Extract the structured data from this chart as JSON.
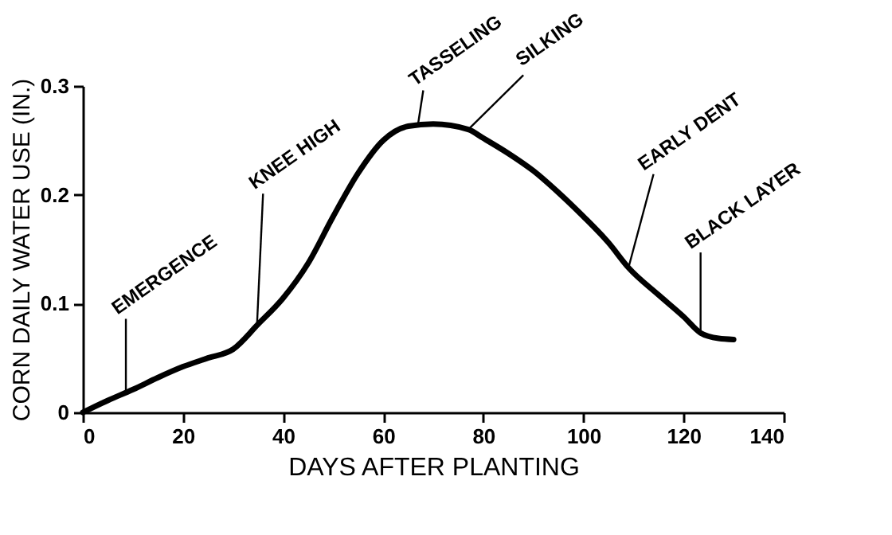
{
  "chart_data": {
    "type": "line",
    "xlabel": "DAYS AFTER PLANTING",
    "ylabel": "CORN DAILY WATER USE (IN.)",
    "x": [
      0,
      5,
      10,
      15,
      20,
      25,
      30,
      35,
      40,
      45,
      50,
      55,
      60,
      65,
      70,
      77,
      80,
      85,
      90,
      95,
      100,
      105,
      109,
      115,
      120,
      123.4,
      127,
      130
    ],
    "series": [
      {
        "color": "#000000",
        "values": [
          0,
          0.011,
          0.021,
          0.032,
          0.042,
          0.05,
          0.058,
          0.081,
          0.105,
          0.137,
          0.18,
          0.22,
          0.25,
          0.263,
          0.265,
          0.26,
          0.252,
          0.238,
          0.222,
          0.202,
          0.18,
          0.156,
          0.133,
          0.108,
          0.088,
          0.073,
          0.068,
          0.067
        ]
      }
    ],
    "annotations": [
      {
        "text": "EMERGENCE",
        "x": 8.6,
        "y": 0.02
      },
      {
        "text": "KNEE HIGH",
        "x": 34.8,
        "y": 0.081
      },
      {
        "text": "TASSELING",
        "x": 67,
        "y": 0.266
      },
      {
        "text": "SILKING",
        "x": 77,
        "y": 0.26
      },
      {
        "text": "EARLY DENT",
        "x": 109,
        "y": 0.133
      },
      {
        "text": "BLACK LAYER",
        "x": 123.4,
        "y": 0.073
      }
    ],
    "xlim": [
      0,
      140
    ],
    "xticks": [
      0,
      20,
      40,
      60,
      80,
      100,
      120,
      140
    ],
    "ylim": [
      0,
      0.3
    ],
    "yticks": [
      0,
      0.1,
      0.2,
      0.3
    ],
    "grid": false,
    "marker": "none",
    "line_style": "solid"
  }
}
